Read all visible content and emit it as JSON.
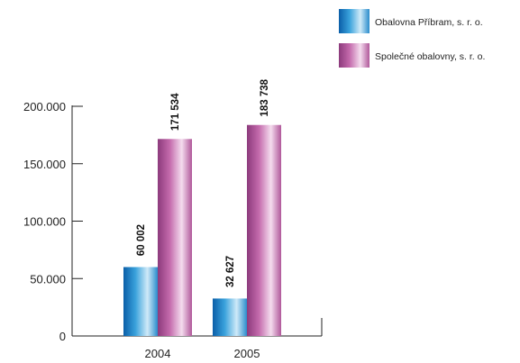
{
  "chart_data": {
    "type": "bar",
    "categories": [
      "2004",
      "2005"
    ],
    "series": [
      {
        "name": "Obalovna  Příbram, s. r. o.",
        "values": [
          60002,
          32627
        ],
        "value_labels": [
          "60 002",
          "32 627"
        ],
        "color": "#1e86c8"
      },
      {
        "name": "Společné obalovny, s. r. o.",
        "values": [
          171534,
          183738
        ],
        "value_labels": [
          "171 534",
          "183 738"
        ],
        "color": "#b0589a"
      }
    ],
    "yticks": [
      0,
      50000,
      100000,
      150000,
      200000
    ],
    "ytick_labels": [
      "0",
      "50.000",
      "100.000",
      "150.000",
      "200.000"
    ],
    "ylim": [
      0,
      200000
    ],
    "legend_position": "top-right",
    "title": "",
    "xlabel": "",
    "ylabel": ""
  }
}
